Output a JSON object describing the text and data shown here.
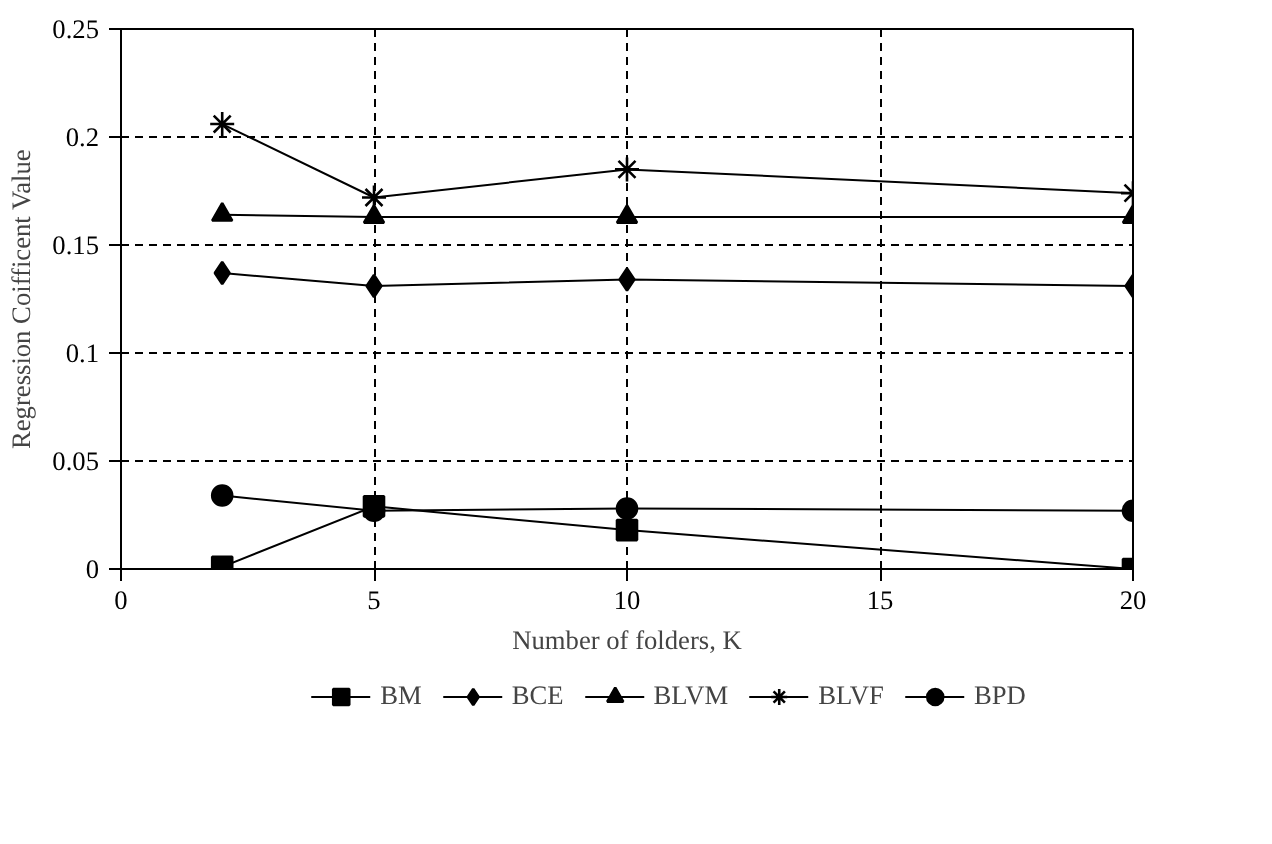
{
  "chart_data": {
    "type": "line",
    "xlabel": "Number of folders, K",
    "ylabel": "Regression Coifficent Value",
    "x": [
      2,
      5,
      10,
      20
    ],
    "xlim": [
      0,
      20
    ],
    "xticks": [
      0,
      5,
      10,
      15,
      20
    ],
    "ylim": [
      0,
      0.25
    ],
    "yticks": [
      0,
      0.05,
      0.1,
      0.15,
      0.2,
      0.25
    ],
    "grid": true,
    "legend": "bottom",
    "line_style": "solid",
    "series": [
      {
        "name": "BM",
        "color": "#000000",
        "marker": "square",
        "values": [
          0.001,
          0.029,
          0.018,
          0.0
        ]
      },
      {
        "name": "BCE",
        "color": "#000000",
        "marker": "diamond",
        "values": [
          0.137,
          0.131,
          0.134,
          0.131
        ]
      },
      {
        "name": "BLVM",
        "color": "#000000",
        "marker": "triangle",
        "values": [
          0.164,
          0.163,
          0.163,
          0.163
        ]
      },
      {
        "name": "BLVF",
        "color": "#000000",
        "marker": "cross",
        "values": [
          0.206,
          0.172,
          0.185,
          0.174
        ]
      },
      {
        "name": "BPD",
        "color": "#000000",
        "marker": "circle",
        "values": [
          0.034,
          0.027,
          0.028,
          0.027
        ]
      }
    ]
  }
}
